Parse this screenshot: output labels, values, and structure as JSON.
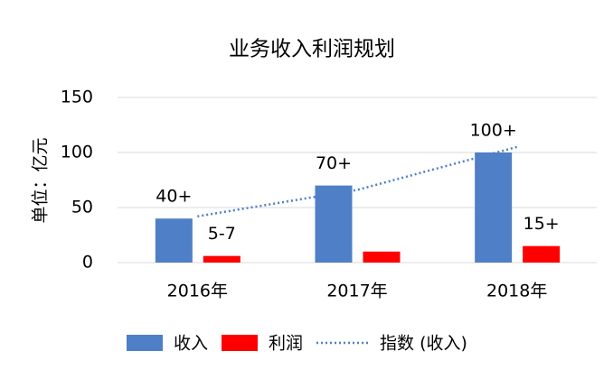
{
  "chart_data": {
    "type": "bar",
    "title": "业务收入利润规划",
    "y_label": "单位：亿元",
    "categories": [
      "2016年",
      "2017年",
      "2018年"
    ],
    "series": [
      {
        "name": "收入",
        "color": "#4f7fc6",
        "values": [
          40,
          70,
          100
        ],
        "value_labels": [
          "40+",
          "70+",
          "100+"
        ]
      },
      {
        "name": "利润",
        "color": "#ff0000",
        "values": [
          6,
          10,
          15
        ],
        "value_labels": [
          "5-7",
          null,
          "15+"
        ]
      },
      {
        "name": "指数 (收入)",
        "type": "line",
        "color": "#4f7fc6",
        "dashed": true,
        "values": [
          42,
          66,
          105
        ]
      }
    ],
    "ylim": [
      0,
      150
    ],
    "yticks": [
      0,
      50,
      100,
      150
    ],
    "grid": true
  }
}
